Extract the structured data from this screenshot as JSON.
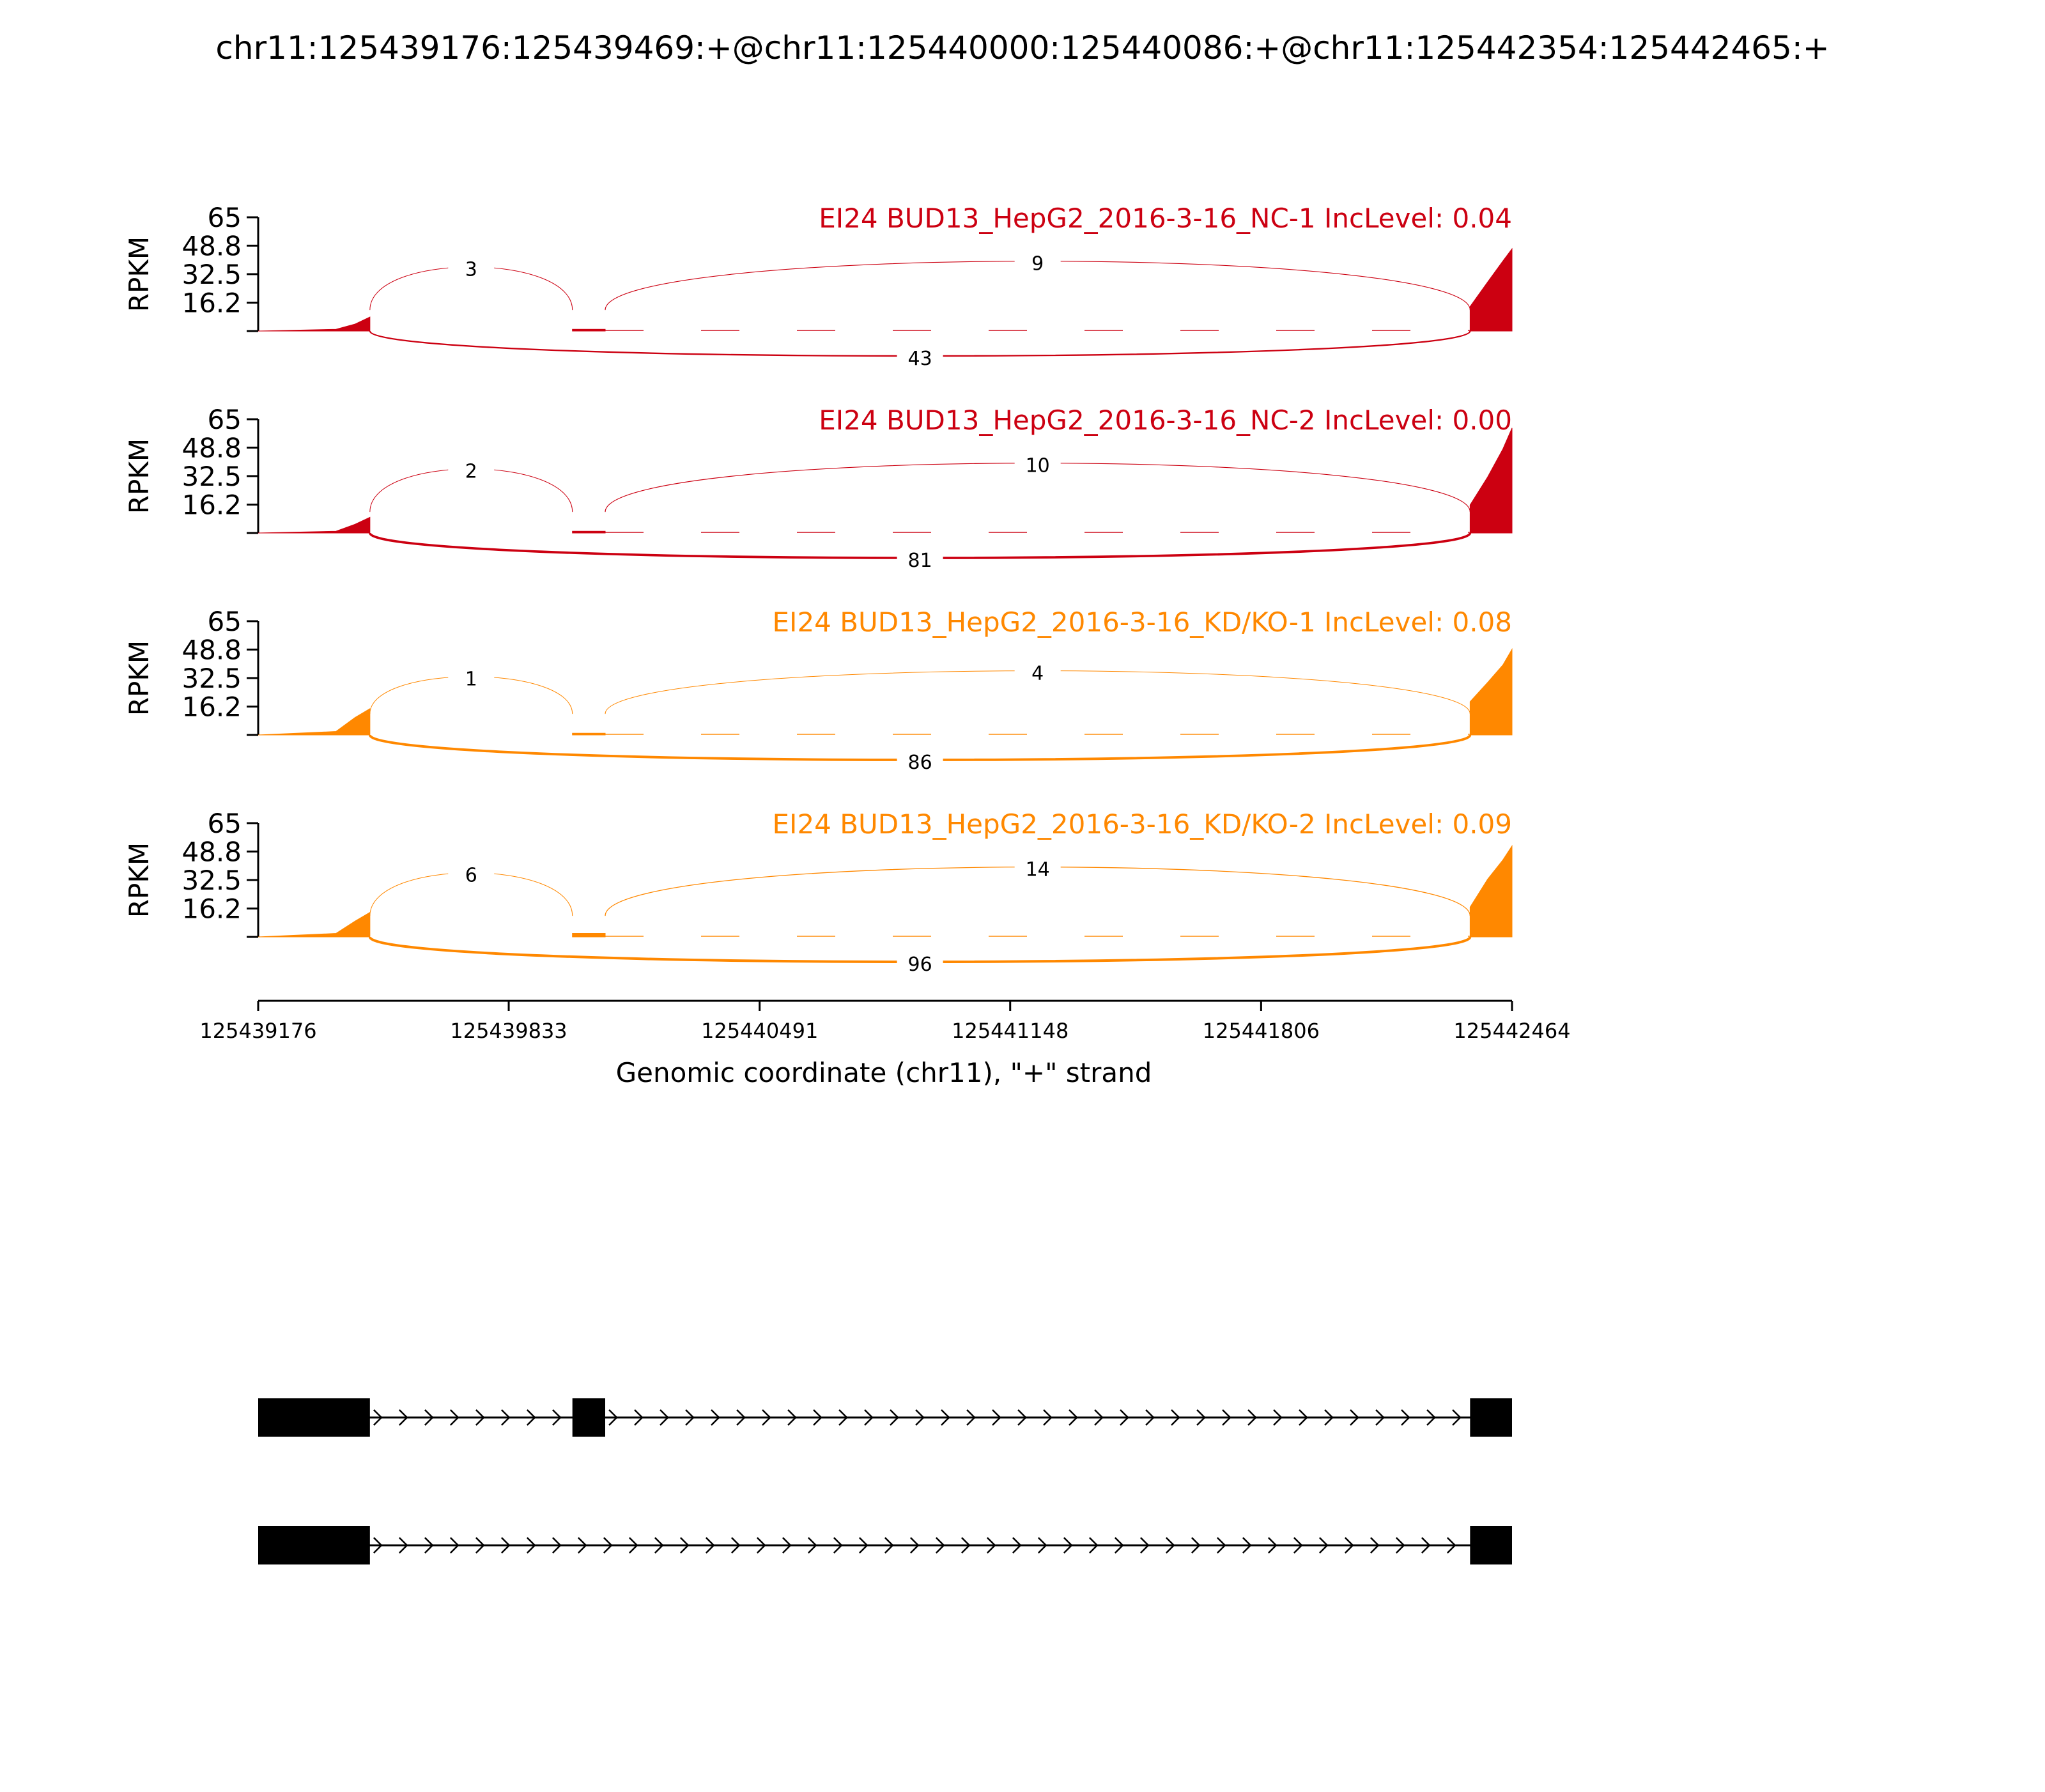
{
  "title": "chr11:125439176:125439469:+@chr11:125440000:125440086:+@chr11:125442354:125442465:+",
  "chart_data": {
    "type": "area",
    "subtype": "sashimi",
    "title": "chr11:125439176:125439469:+@chr11:125440000:125440086:+@chr11:125442354:125442465:+",
    "xlabel": "Genomic coordinate (chr11), \"+\" strand",
    "xlim": [
      125439176,
      125442464
    ],
    "xticks": [
      "125439176",
      "125439833",
      "125440491",
      "125441148",
      "125441806",
      "125442464"
    ],
    "ylabel": "RPKM",
    "ylim": [
      0,
      65
    ],
    "yticks": [
      "65",
      "48.8",
      "32.5",
      "16.2"
    ],
    "grid": false,
    "exons": [
      {
        "start": 125439176,
        "end": 125439469
      },
      {
        "start": 125440000,
        "end": 125440086
      },
      {
        "start": 125442354,
        "end": 125442465
      }
    ],
    "panels": [
      {
        "label": "EI24 BUD13_HepG2_2016-3-16_NC-1 IncLevel: 0.04",
        "color": "#cc0011",
        "junctions": [
          {
            "start": 125439469,
            "end": 125440000,
            "count": "3",
            "side": "above"
          },
          {
            "start": 125440086,
            "end": 125442354,
            "count": "9",
            "side": "above"
          },
          {
            "start": 125439469,
            "end": 125442354,
            "count": "43",
            "side": "below"
          }
        ],
        "coverage": [
          {
            "x": 125439176,
            "y": 0
          },
          {
            "x": 125439380,
            "y": 1
          },
          {
            "x": 125439430,
            "y": 4
          },
          {
            "x": 125439469,
            "y": 8
          },
          {
            "x": 125440000,
            "y": 1
          },
          {
            "x": 125440086,
            "y": 1
          },
          {
            "x": 125442354,
            "y": 14
          },
          {
            "x": 125442400,
            "y": 28
          },
          {
            "x": 125442440,
            "y": 40
          },
          {
            "x": 125442464,
            "y": 47
          }
        ]
      },
      {
        "label": "EI24 BUD13_HepG2_2016-3-16_NC-2 IncLevel: 0.00",
        "color": "#cc0011",
        "junctions": [
          {
            "start": 125439469,
            "end": 125440000,
            "count": "2",
            "side": "above"
          },
          {
            "start": 125440086,
            "end": 125442354,
            "count": "10",
            "side": "above"
          },
          {
            "start": 125439469,
            "end": 125442354,
            "count": "81",
            "side": "below"
          }
        ],
        "coverage": [
          {
            "x": 125439176,
            "y": 0
          },
          {
            "x": 125439380,
            "y": 1
          },
          {
            "x": 125439430,
            "y": 5
          },
          {
            "x": 125439469,
            "y": 9
          },
          {
            "x": 125440000,
            "y": 1
          },
          {
            "x": 125440086,
            "y": 1
          },
          {
            "x": 125442354,
            "y": 16
          },
          {
            "x": 125442400,
            "y": 32
          },
          {
            "x": 125442440,
            "y": 48
          },
          {
            "x": 125442464,
            "y": 60
          }
        ]
      },
      {
        "label": "EI24 BUD13_HepG2_2016-3-16_KD/KO-1 IncLevel: 0.08",
        "color": "#ff8800",
        "junctions": [
          {
            "start": 125439469,
            "end": 125440000,
            "count": "1",
            "side": "above"
          },
          {
            "start": 125440086,
            "end": 125442354,
            "count": "4",
            "side": "above"
          },
          {
            "start": 125439469,
            "end": 125442354,
            "count": "86",
            "side": "below"
          }
        ],
        "coverage": [
          {
            "x": 125439176,
            "y": 0
          },
          {
            "x": 125439380,
            "y": 2
          },
          {
            "x": 125439430,
            "y": 10
          },
          {
            "x": 125439469,
            "y": 15
          },
          {
            "x": 125440000,
            "y": 1
          },
          {
            "x": 125440086,
            "y": 1
          },
          {
            "x": 125442354,
            "y": 19
          },
          {
            "x": 125442400,
            "y": 30
          },
          {
            "x": 125442440,
            "y": 40
          },
          {
            "x": 125442464,
            "y": 49
          }
        ]
      },
      {
        "label": "EI24 BUD13_HepG2_2016-3-16_KD/KO-2 IncLevel: 0.09",
        "color": "#ff8800",
        "junctions": [
          {
            "start": 125439469,
            "end": 125440000,
            "count": "6",
            "side": "above"
          },
          {
            "start": 125440086,
            "end": 125442354,
            "count": "14",
            "side": "above"
          },
          {
            "start": 125439469,
            "end": 125442354,
            "count": "96",
            "side": "below"
          }
        ],
        "coverage": [
          {
            "x": 125439176,
            "y": 0
          },
          {
            "x": 125439380,
            "y": 2
          },
          {
            "x": 125439430,
            "y": 9
          },
          {
            "x": 125439469,
            "y": 14
          },
          {
            "x": 125440000,
            "y": 2
          },
          {
            "x": 125440086,
            "y": 2
          },
          {
            "x": 125442354,
            "y": 17
          },
          {
            "x": 125442400,
            "y": 33
          },
          {
            "x": 125442440,
            "y": 44
          },
          {
            "x": 125442464,
            "y": 52
          }
        ]
      }
    ],
    "isoforms": [
      {
        "exons": [
          [
            125439176,
            125439469
          ],
          [
            125440000,
            125440086
          ],
          [
            125442354,
            125442465
          ]
        ]
      },
      {
        "exons": [
          [
            125439176,
            125439469
          ],
          [
            125442354,
            125442465
          ]
        ]
      }
    ]
  }
}
